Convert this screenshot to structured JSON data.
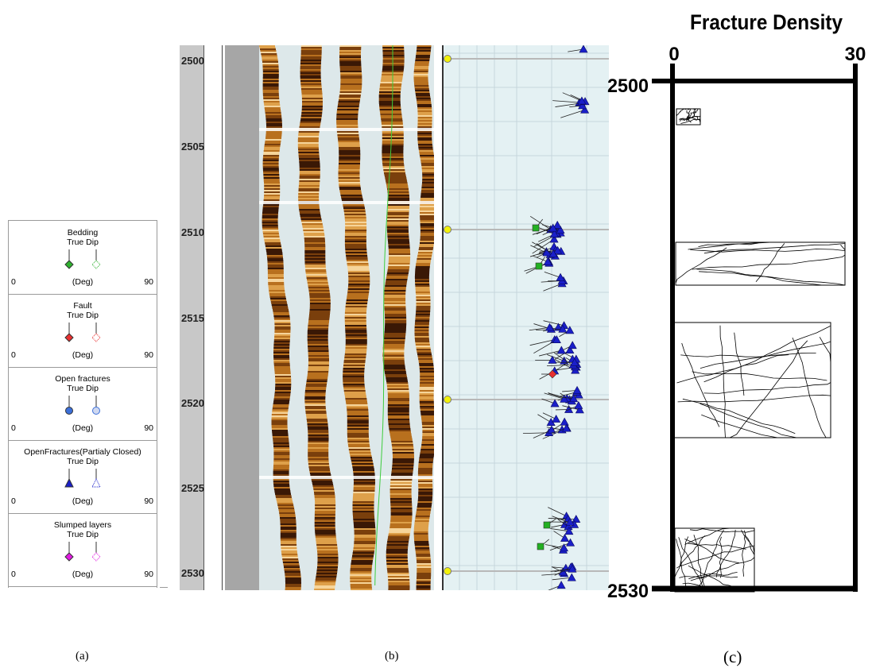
{
  "legend": {
    "items": [
      {
        "name": "Bedding",
        "line2": "True Dip",
        "unit": "(Deg)",
        "min": "0",
        "max": "90",
        "symbol": "diamond",
        "color": "#2fb12f"
      },
      {
        "name": "Fault",
        "line2": "True Dip",
        "unit": "(Deg)",
        "min": "0",
        "max": "90",
        "symbol": "diamond",
        "color": "#e83030"
      },
      {
        "name": "Open fractures",
        "line2": "True Dip",
        "unit": "(Deg)",
        "min": "0",
        "max": "90",
        "symbol": "circle",
        "color": "#3b6fd8"
      },
      {
        "name": "OpenFractures(Partialy Closed)",
        "line2": "True Dip",
        "unit": "(Deg)",
        "min": "0",
        "max": "90",
        "symbol": "triangle",
        "color": "#1a1fc9"
      },
      {
        "name": "Slumped layers",
        "line2": "True Dip",
        "unit": "(Deg)",
        "min": "0",
        "max": "90",
        "symbol": "diamond",
        "color": "#e21ae2"
      }
    ]
  },
  "log": {
    "depth_labels": [
      "2500",
      "2505",
      "2510",
      "2515",
      "2520",
      "2525",
      "2530"
    ],
    "depth_range": [
      2500,
      2530
    ]
  },
  "fracture_density": {
    "title": "Fracture Density",
    "axis_min": "0",
    "axis_max": "30",
    "depth_top": "2500",
    "depth_bottom": "2530"
  },
  "captions": {
    "a": "(a)",
    "b": "(b)",
    "c": "(c)"
  },
  "colors": {
    "image_dark": "#3a1a05",
    "image_light": "#e8a548",
    "pad_gap": "#dde8ea",
    "tadpole_bg": "#e4f1f3",
    "grid": "#c6d6dc"
  }
}
